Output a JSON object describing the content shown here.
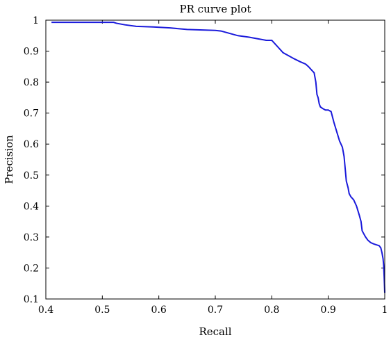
{
  "chart_data": {
    "type": "line",
    "title": "PR curve plot",
    "xlabel": "Recall",
    "ylabel": "Precision",
    "xlim": [
      0.4,
      1
    ],
    "ylim": [
      0.1,
      1
    ],
    "grid": false,
    "xticks": [
      "0.4",
      "0.5",
      "0.6",
      "0.7",
      "0.8",
      "0.9",
      "1"
    ],
    "yticks": [
      "0.1",
      "0.2",
      "0.3",
      "0.4",
      "0.5",
      "0.6",
      "0.7",
      "0.8",
      "0.9",
      "1"
    ],
    "series": [
      {
        "color": "#1a1adb",
        "x": [
          0.41,
          0.45,
          0.52,
          0.525,
          0.54,
          0.56,
          0.59,
          0.62,
          0.65,
          0.7,
          0.71,
          0.72,
          0.74,
          0.76,
          0.775,
          0.79,
          0.8,
          0.805,
          0.81,
          0.815,
          0.82,
          0.83,
          0.84,
          0.85,
          0.86,
          0.865,
          0.87,
          0.875,
          0.878,
          0.88,
          0.882,
          0.884,
          0.886,
          0.89,
          0.895,
          0.9,
          0.905,
          0.91,
          0.915,
          0.92,
          0.925,
          0.928,
          0.93,
          0.932,
          0.935,
          0.937,
          0.94,
          0.945,
          0.95,
          0.955,
          0.958,
          0.96,
          0.963,
          0.966,
          0.97,
          0.975,
          0.98,
          0.985,
          0.99,
          0.993,
          0.995,
          0.997,
          0.998,
          0.999,
          1.0
        ],
        "y": [
          0.993,
          0.993,
          0.993,
          0.99,
          0.985,
          0.98,
          0.978,
          0.975,
          0.97,
          0.967,
          0.965,
          0.96,
          0.95,
          0.945,
          0.94,
          0.935,
          0.935,
          0.925,
          0.915,
          0.905,
          0.895,
          0.885,
          0.875,
          0.866,
          0.858,
          0.85,
          0.84,
          0.83,
          0.8,
          0.76,
          0.75,
          0.73,
          0.72,
          0.715,
          0.71,
          0.71,
          0.705,
          0.67,
          0.64,
          0.61,
          0.59,
          0.56,
          0.52,
          0.48,
          0.46,
          0.44,
          0.43,
          0.42,
          0.4,
          0.37,
          0.35,
          0.32,
          0.31,
          0.3,
          0.29,
          0.282,
          0.278,
          0.275,
          0.272,
          0.265,
          0.25,
          0.23,
          0.21,
          0.17,
          0.12
        ]
      }
    ]
  }
}
